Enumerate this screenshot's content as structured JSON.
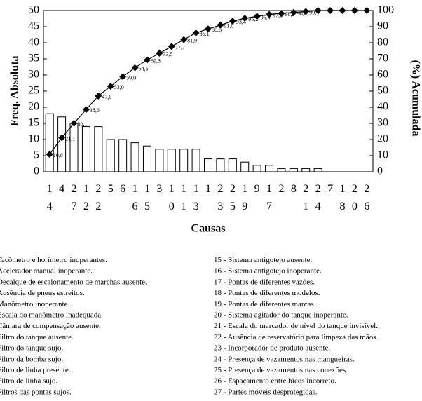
{
  "chart_data": {
    "type": "pareto",
    "y_label": "Freq. Absoluta",
    "y2_label": "(%) Acumulada",
    "x_label": "Causas",
    "categories": [
      "14",
      "4",
      "27",
      "12",
      "22",
      "5",
      "6",
      "16",
      "15",
      "3",
      "10",
      "11",
      "13",
      "1",
      "23",
      "25",
      "19",
      "9",
      "17",
      "2",
      "8",
      "21",
      "24",
      "7",
      "18",
      "20",
      "26"
    ],
    "series": [
      {
        "name": "Freq. Absoluta",
        "color": "#ffffff",
        "values": [
          18,
          17,
          15,
          14,
          14,
          10,
          10,
          9,
          8,
          7,
          7,
          7,
          7,
          4,
          4,
          4,
          3,
          2,
          2,
          1,
          1,
          1,
          1,
          0,
          0,
          0,
          0
        ]
      },
      {
        "name": "(%) Acumulada",
        "color": "#000000",
        "axis": "y2",
        "values": [
          10.8,
          21.1,
          30.1,
          38.6,
          47.0,
          53.0,
          59.0,
          64.5,
          69.3,
          73.5,
          77.7,
          81.9,
          86.1,
          88.6,
          91.0,
          93.4,
          95.2,
          96.4,
          97.6,
          98.2,
          98.8,
          99.4,
          100,
          100,
          100,
          100,
          100
        ],
        "value_labels": [
          "10,8",
          "21,1",
          "30,1",
          "38,6",
          "47,0",
          "53,0",
          "59,0",
          "64,5",
          "69,3",
          "73,5",
          "77,7",
          "81,9",
          "86,1",
          "88,6",
          "91,0",
          "93,4",
          "95,2",
          "96,4",
          "97,6",
          "98,2",
          "98,8",
          "99,4",
          null,
          null,
          null,
          null,
          null
        ]
      }
    ],
    "ylim": [
      0,
      50
    ],
    "yticks": [
      0,
      5,
      10,
      15,
      20,
      25,
      30,
      35,
      40,
      45,
      50
    ],
    "y2lim": [
      0,
      100
    ],
    "y2ticks": [
      0,
      10,
      20,
      30,
      40,
      50,
      60,
      70,
      80,
      90,
      100
    ]
  },
  "legend_left": [
    "Tacômetro e horímetro inoperantes.",
    "Acelerador manual inoperante.",
    "Decalque de escalonamento de marchas ausente.",
    "Ausência de pneus estreitos.",
    "Manômetro inoperante.",
    "Escala do manômetro inadequada",
    "Câmara de compensação ausente.",
    "Filtro do tanque ausente.",
    "Filtro do tanque sujo.",
    "Filtro da bomba sujo.",
    "Filtro de linha presente.",
    "Filtro de linha sujo.",
    "Filtros das pontas sujos."
  ],
  "legend_right": [
    "15 - Sistema antigotejo ausente.",
    "16 - Sistema antigotejo inoperante.",
    "17 - Pontas de diferentes vazões.",
    "18 - Pontas de diferentes modelos.",
    "19 - Pontas de diferentes marcas.",
    "20 - Sistema agitador do tanque inoperante.",
    "21 - Escala do marcador de nível do tanque invisível.",
    "22 - Ausência de reservatório para limpeza das mãos.",
    "23 - Incorporador de produto ausente.",
    "24 - Presença de vazamentos nas mangueiras.",
    "25 - Presença de vazamentos nas conexões.",
    "26 - Espaçamento entre bicos incorreto.",
    "27 - Partes móveis desprotegidas."
  ]
}
